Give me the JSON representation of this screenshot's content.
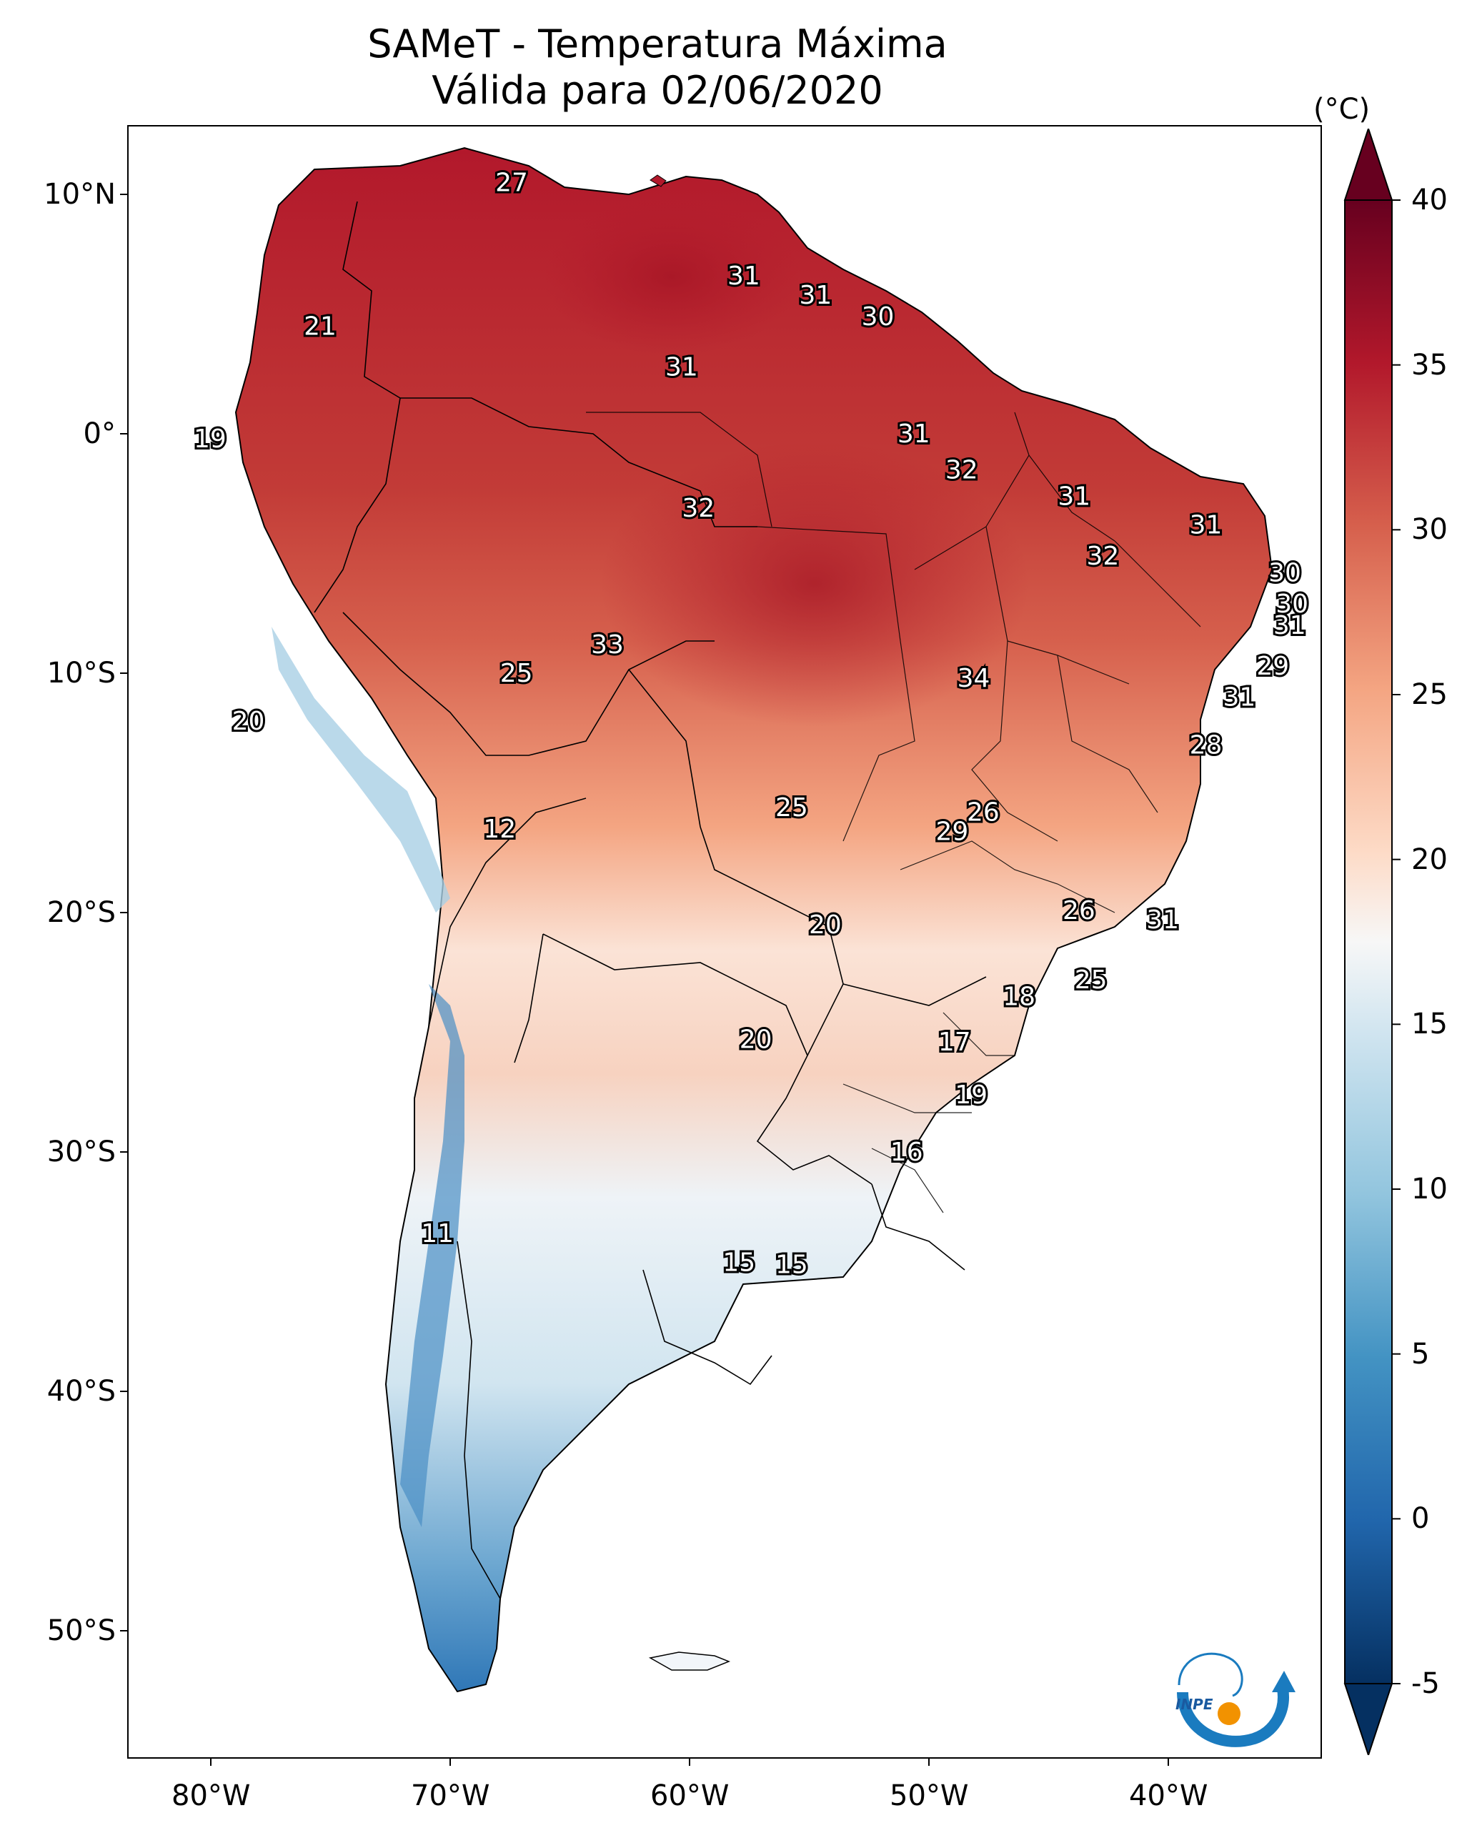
{
  "header": {
    "title": "SAMeT - Temperatura Máxima",
    "subtitle": "Válida para 02/06/2020"
  },
  "axes": {
    "latitude_labels": [
      "10°N",
      "0°",
      "10°S",
      "20°S",
      "30°S",
      "40°S",
      "50°S"
    ],
    "longitude_labels": [
      "80°W",
      "70°W",
      "60°W",
      "50°W",
      "40°W"
    ]
  },
  "colorbar": {
    "unit": "(°C)",
    "tick_labels": [
      "40",
      "35",
      "30",
      "25",
      "20",
      "15",
      "10",
      "5",
      "0",
      "-5"
    ],
    "range": [
      -5,
      40
    ],
    "extend": "both",
    "colormap": "RdBu_r",
    "colors": {
      "coldest": "#053061",
      "cold": "#2166ac",
      "cool": "#92c5de",
      "neutral": "#f7f7f7",
      "warm": "#f4a582",
      "hot": "#d6604d",
      "hottest": "#67001f"
    }
  },
  "station_labels": [
    {
      "text": "27",
      "lon": -67.5,
      "lat": 10.5
    },
    {
      "text": "31",
      "lon": -57.8,
      "lat": 6.6
    },
    {
      "text": "31",
      "lon": -54.8,
      "lat": 5.8
    },
    {
      "text": "30",
      "lon": -52.2,
      "lat": 4.9
    },
    {
      "text": "21",
      "lon": -75.5,
      "lat": 4.5
    },
    {
      "text": "31",
      "lon": -60.4,
      "lat": 2.8
    },
    {
      "text": "19",
      "lon": -80.1,
      "lat": -0.2
    },
    {
      "text": "31",
      "lon": -50.7,
      "lat": 0.0
    },
    {
      "text": "32",
      "lon": -48.7,
      "lat": -1.5
    },
    {
      "text": "31",
      "lon": -44.0,
      "lat": -2.6
    },
    {
      "text": "32",
      "lon": -59.7,
      "lat": -3.1
    },
    {
      "text": "31",
      "lon": -38.5,
      "lat": -3.8
    },
    {
      "text": "32",
      "lon": -42.8,
      "lat": -5.1
    },
    {
      "text": "30",
      "lon": -35.2,
      "lat": -5.8
    },
    {
      "text": "30",
      "lon": -34.9,
      "lat": -7.1
    },
    {
      "text": "31",
      "lon": -35.0,
      "lat": -8.0
    },
    {
      "text": "33",
      "lon": -63.5,
      "lat": -8.8
    },
    {
      "text": "29",
      "lon": -35.7,
      "lat": -9.7
    },
    {
      "text": "25",
      "lon": -67.3,
      "lat": -10.0
    },
    {
      "text": "34",
      "lon": -48.2,
      "lat": -10.2
    },
    {
      "text": "31",
      "lon": -37.1,
      "lat": -11.0
    },
    {
      "text": "20",
      "lon": -78.5,
      "lat": -12.0
    },
    {
      "text": "28",
      "lon": -38.5,
      "lat": -13.0
    },
    {
      "text": "25",
      "lon": -55.8,
      "lat": -15.6
    },
    {
      "text": "26",
      "lon": -47.8,
      "lat": -15.8
    },
    {
      "text": "29",
      "lon": -49.1,
      "lat": -16.6
    },
    {
      "text": "12",
      "lon": -68.0,
      "lat": -16.5
    },
    {
      "text": "26",
      "lon": -43.8,
      "lat": -19.9
    },
    {
      "text": "20",
      "lon": -54.4,
      "lat": -20.5
    },
    {
      "text": "31",
      "lon": -40.3,
      "lat": -20.3
    },
    {
      "text": "25",
      "lon": -43.3,
      "lat": -22.8
    },
    {
      "text": "18",
      "lon": -46.3,
      "lat": -23.5
    },
    {
      "text": "20",
      "lon": -57.3,
      "lat": -25.3
    },
    {
      "text": "17",
      "lon": -49.0,
      "lat": -25.4
    },
    {
      "text": "19",
      "lon": -48.3,
      "lat": -27.6
    },
    {
      "text": "16",
      "lon": -51.0,
      "lat": -30.0
    },
    {
      "text": "11",
      "lon": -70.6,
      "lat": -33.4
    },
    {
      "text": "15",
      "lon": -58.0,
      "lat": -34.6
    },
    {
      "text": "15",
      "lon": -55.8,
      "lat": -34.7
    }
  ],
  "logo": {
    "text": "INPE"
  }
}
